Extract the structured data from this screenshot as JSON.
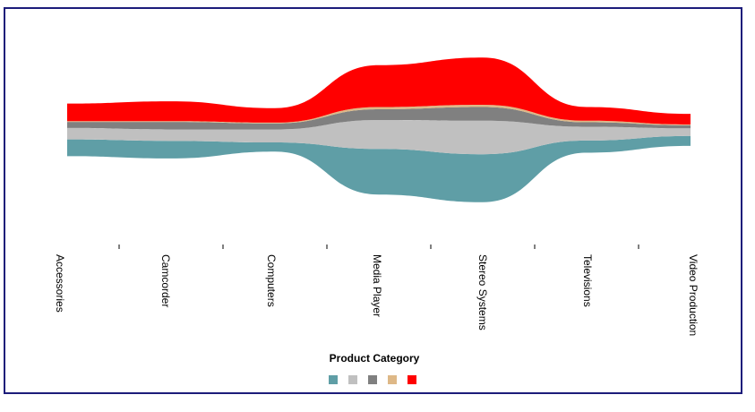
{
  "chart_data": {
    "type": "area",
    "subtype": "streamgraph",
    "categories": [
      "Accessories",
      "Camcorder",
      "Computers",
      "Media Player",
      "Stereo Systems",
      "Televisions",
      "Video Production"
    ],
    "series": [
      {
        "color": "#5f9ea6",
        "values": [
          22,
          23,
          12,
          60,
          63,
          16,
          13
        ]
      },
      {
        "color": "#c0c0c0",
        "values": [
          15,
          15,
          17,
          38,
          44,
          18,
          10
        ]
      },
      {
        "color": "#808080",
        "values": [
          8,
          10,
          8,
          14,
          18,
          6,
          4
        ]
      },
      {
        "color": "#deb887",
        "values": [
          1,
          1,
          1,
          3,
          3,
          2,
          1
        ]
      },
      {
        "color": "#ff0000",
        "values": [
          23,
          26,
          19,
          55,
          62,
          18,
          14
        ]
      }
    ],
    "legend": {
      "title": "Product Category",
      "placement": "bottom"
    },
    "grid": false
  }
}
